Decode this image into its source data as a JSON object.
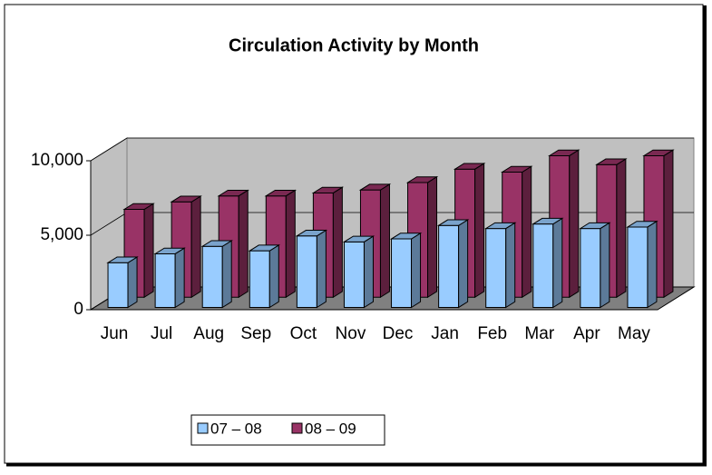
{
  "chart_data": {
    "type": "bar3d",
    "title": "Circulation Activity by Month",
    "categories": [
      "Jun",
      "Jul",
      "Aug",
      "Sep",
      "Oct",
      "Nov",
      "Dec",
      "Jan",
      "Feb",
      "Mar",
      "Apr",
      "May"
    ],
    "series": [
      {
        "name": "07 – 08",
        "color": "#99ccff",
        "values": [
          3000,
          3600,
          4100,
          3800,
          4800,
          4400,
          4600,
          5500,
          5300,
          5600,
          5300,
          5400
        ]
      },
      {
        "name": "08 – 09",
        "color": "#993366",
        "values": [
          5900,
          6400,
          6800,
          6800,
          7000,
          7200,
          7700,
          8600,
          8400,
          9500,
          8900,
          9500
        ]
      }
    ],
    "ylim": [
      0,
      10000
    ],
    "yticks": [
      0,
      {
        "value": 5000,
        "label": "5,000"
      },
      {
        "value": 10000,
        "label": "10,000"
      }
    ],
    "grid": true,
    "legend": "bottom"
  }
}
